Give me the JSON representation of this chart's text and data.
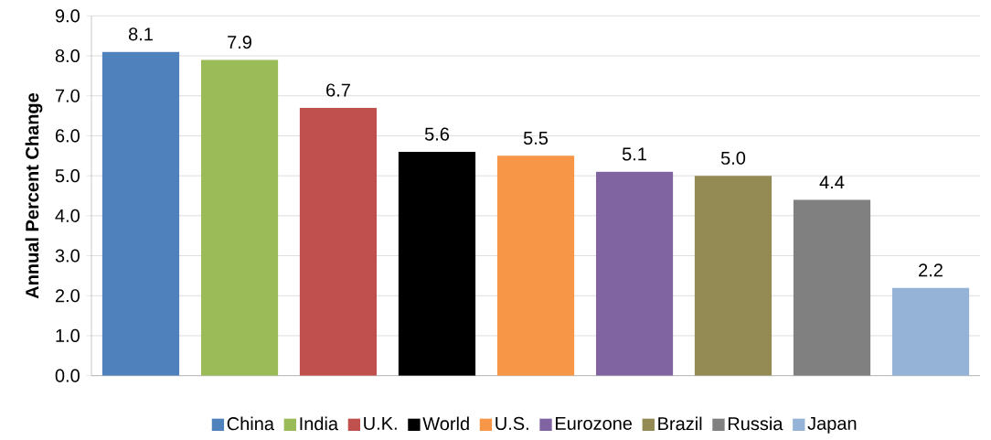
{
  "chart_data": {
    "type": "bar",
    "ylabel": "Annual Percent Change",
    "categories": [
      null,
      null,
      null,
      null,
      null,
      null,
      null,
      null,
      null
    ],
    "series": [
      {
        "name": "China",
        "color": "#4f81bd",
        "values": [
          8.1,
          null,
          null,
          null,
          null,
          null,
          null,
          null,
          null
        ],
        "value_labels": [
          "8.1",
          null,
          null,
          null,
          null,
          null,
          null,
          null,
          null
        ]
      },
      {
        "name": "India",
        "color": "#9bbb59",
        "values": [
          null,
          7.9,
          null,
          null,
          null,
          null,
          null,
          null,
          null
        ],
        "value_labels": [
          null,
          "7.9",
          null,
          null,
          null,
          null,
          null,
          null,
          null
        ]
      },
      {
        "name": "U.K.",
        "color": "#c0504d",
        "values": [
          null,
          null,
          6.7,
          null,
          null,
          null,
          null,
          null,
          null
        ],
        "value_labels": [
          null,
          null,
          "6.7",
          null,
          null,
          null,
          null,
          null,
          null
        ]
      },
      {
        "name": "World",
        "color": "#000000",
        "values": [
          null,
          null,
          null,
          5.6,
          null,
          null,
          null,
          null,
          null
        ],
        "value_labels": [
          null,
          null,
          null,
          "5.6",
          null,
          null,
          null,
          null,
          null
        ]
      },
      {
        "name": "U.S.",
        "color": "#f79646",
        "values": [
          null,
          null,
          null,
          null,
          5.5,
          null,
          null,
          null,
          null
        ],
        "value_labels": [
          null,
          null,
          null,
          null,
          "5.5",
          null,
          null,
          null,
          null
        ]
      },
      {
        "name": "Eurozone",
        "color": "#8064a2",
        "values": [
          null,
          null,
          null,
          null,
          null,
          5.1,
          null,
          null,
          null
        ],
        "value_labels": [
          null,
          null,
          null,
          null,
          null,
          "5.1",
          null,
          null,
          null
        ]
      },
      {
        "name": "Brazil",
        "color": "#948a54",
        "values": [
          null,
          null,
          null,
          null,
          null,
          null,
          5.0,
          null,
          null
        ],
        "value_labels": [
          null,
          null,
          null,
          null,
          null,
          null,
          "5.0",
          null,
          null
        ]
      },
      {
        "name": "Russia",
        "color": "#808080",
        "values": [
          null,
          null,
          null,
          null,
          null,
          null,
          null,
          4.4,
          null
        ],
        "value_labels": [
          null,
          null,
          null,
          null,
          null,
          null,
          null,
          "4.4",
          null
        ]
      },
      {
        "name": "Japan",
        "color": "#95b3d7",
        "values": [
          null,
          null,
          null,
          null,
          null,
          null,
          null,
          null,
          2.2
        ],
        "value_labels": [
          null,
          null,
          null,
          null,
          null,
          null,
          null,
          null,
          "2.2"
        ]
      }
    ],
    "ylim": [
      0,
      9
    ],
    "yticks": [
      {
        "value": 0,
        "label": "0.0"
      },
      {
        "value": 1,
        "label": "1.0"
      },
      {
        "value": 2,
        "label": "2.0"
      },
      {
        "value": 3,
        "label": "3.0"
      },
      {
        "value": 4,
        "label": "4.0"
      },
      {
        "value": 5,
        "label": "5.0"
      },
      {
        "value": 6,
        "label": "6.0"
      },
      {
        "value": 7,
        "label": "7.0"
      },
      {
        "value": 8,
        "label": "8.0"
      },
      {
        "value": 9,
        "label": "9.0"
      }
    ],
    "grid": "y",
    "legend": "bottom",
    "tick_labels": "y"
  }
}
